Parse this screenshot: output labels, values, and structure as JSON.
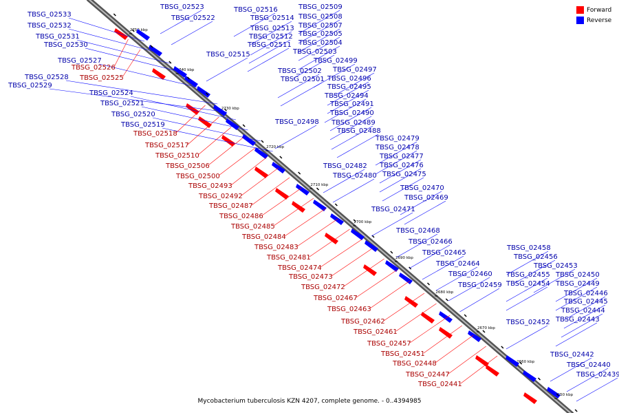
{
  "legend": [
    {
      "label": "Forward",
      "color": "#ff0000"
    },
    {
      "label": "Reverse",
      "color": "#0000ff"
    }
  ],
  "caption": "Mycobacterium tuberculosis KZN 4207, complete genome. - 0..4394985",
  "ticks": [
    "2750 kbp",
    "2740 kbp",
    "2730 kbp",
    "2720 kbp",
    "2710 kbp",
    "2700 kbp",
    "2690 kbp",
    "2680 kbp",
    "2670 kbp",
    "2660 kbp",
    "2650 kbp"
  ],
  "reverse_labels": [
    "TBSG_02533",
    "TBSG_02532",
    "TBSG_02531",
    "TBSG_02530",
    "TBSG_02527",
    "TBSG_02528",
    "TBSG_02529",
    "TBSG_02524",
    "TBSG_02521",
    "TBSG_02520",
    "TBSG_02519",
    "TBSG_02523",
    "TBSG_02522",
    "TBSG_02516",
    "TBSG_02514",
    "TBSG_02513",
    "TBSG_02512",
    "TBSG_02511",
    "TBSG_02515",
    "TBSG_02509",
    "TBSG_02508",
    "TBSG_02507",
    "TBSG_02505",
    "TBSG_02504",
    "TBSG_02503",
    "TBSG_02499",
    "TBSG_02497",
    "TBSG_02502",
    "TBSG_02501",
    "TBSG_02496",
    "TBSG_02495",
    "TBSG_02494",
    "TBSG_02491",
    "TBSG_02490",
    "TBSG_02498",
    "TBSG_02489",
    "TBSG_02488",
    "TBSG_02479",
    "TBSG_02478",
    "TBSG_02477",
    "TBSG_02482",
    "TBSG_02476",
    "TBSG_02480",
    "TBSG_02475",
    "TBSG_02470",
    "TBSG_02469",
    "TBSG_02471",
    "TBSG_02468",
    "TBSG_02466",
    "TBSG_02465",
    "TBSG_02464",
    "TBSG_02460",
    "TBSG_02459",
    "TBSG_02458",
    "TBSG_02456",
    "TBSG_02453",
    "TBSG_02455",
    "TBSG_02450",
    "TBSG_02454",
    "TBSG_02449",
    "TBSG_02446",
    "TBSG_02445",
    "TBSG_02444",
    "TBSG_02452",
    "TBSG_02443",
    "TBSG_02442",
    "TBSG_02440",
    "TBSG_02439"
  ],
  "forward_labels": [
    "TBSG_02526",
    "TBSG_02525",
    "TBSG_02518",
    "TBSG_02517",
    "TBSG_02510",
    "TBSG_02506",
    "TBSG_02500",
    "TBSG_02493",
    "TBSG_02492",
    "TBSG_02487",
    "TBSG_02486",
    "TBSG_02485",
    "TBSG_02484",
    "TBSG_02483",
    "TBSG_02481",
    "TBSG_02474",
    "TBSG_02473",
    "TBSG_02472",
    "TBSG_02467",
    "TBSG_02463",
    "TBSG_02462",
    "TBSG_02461",
    "TBSG_02457",
    "TBSG_02451",
    "TBSG_02448",
    "TBSG_02447",
    "TBSG_02441"
  ]
}
